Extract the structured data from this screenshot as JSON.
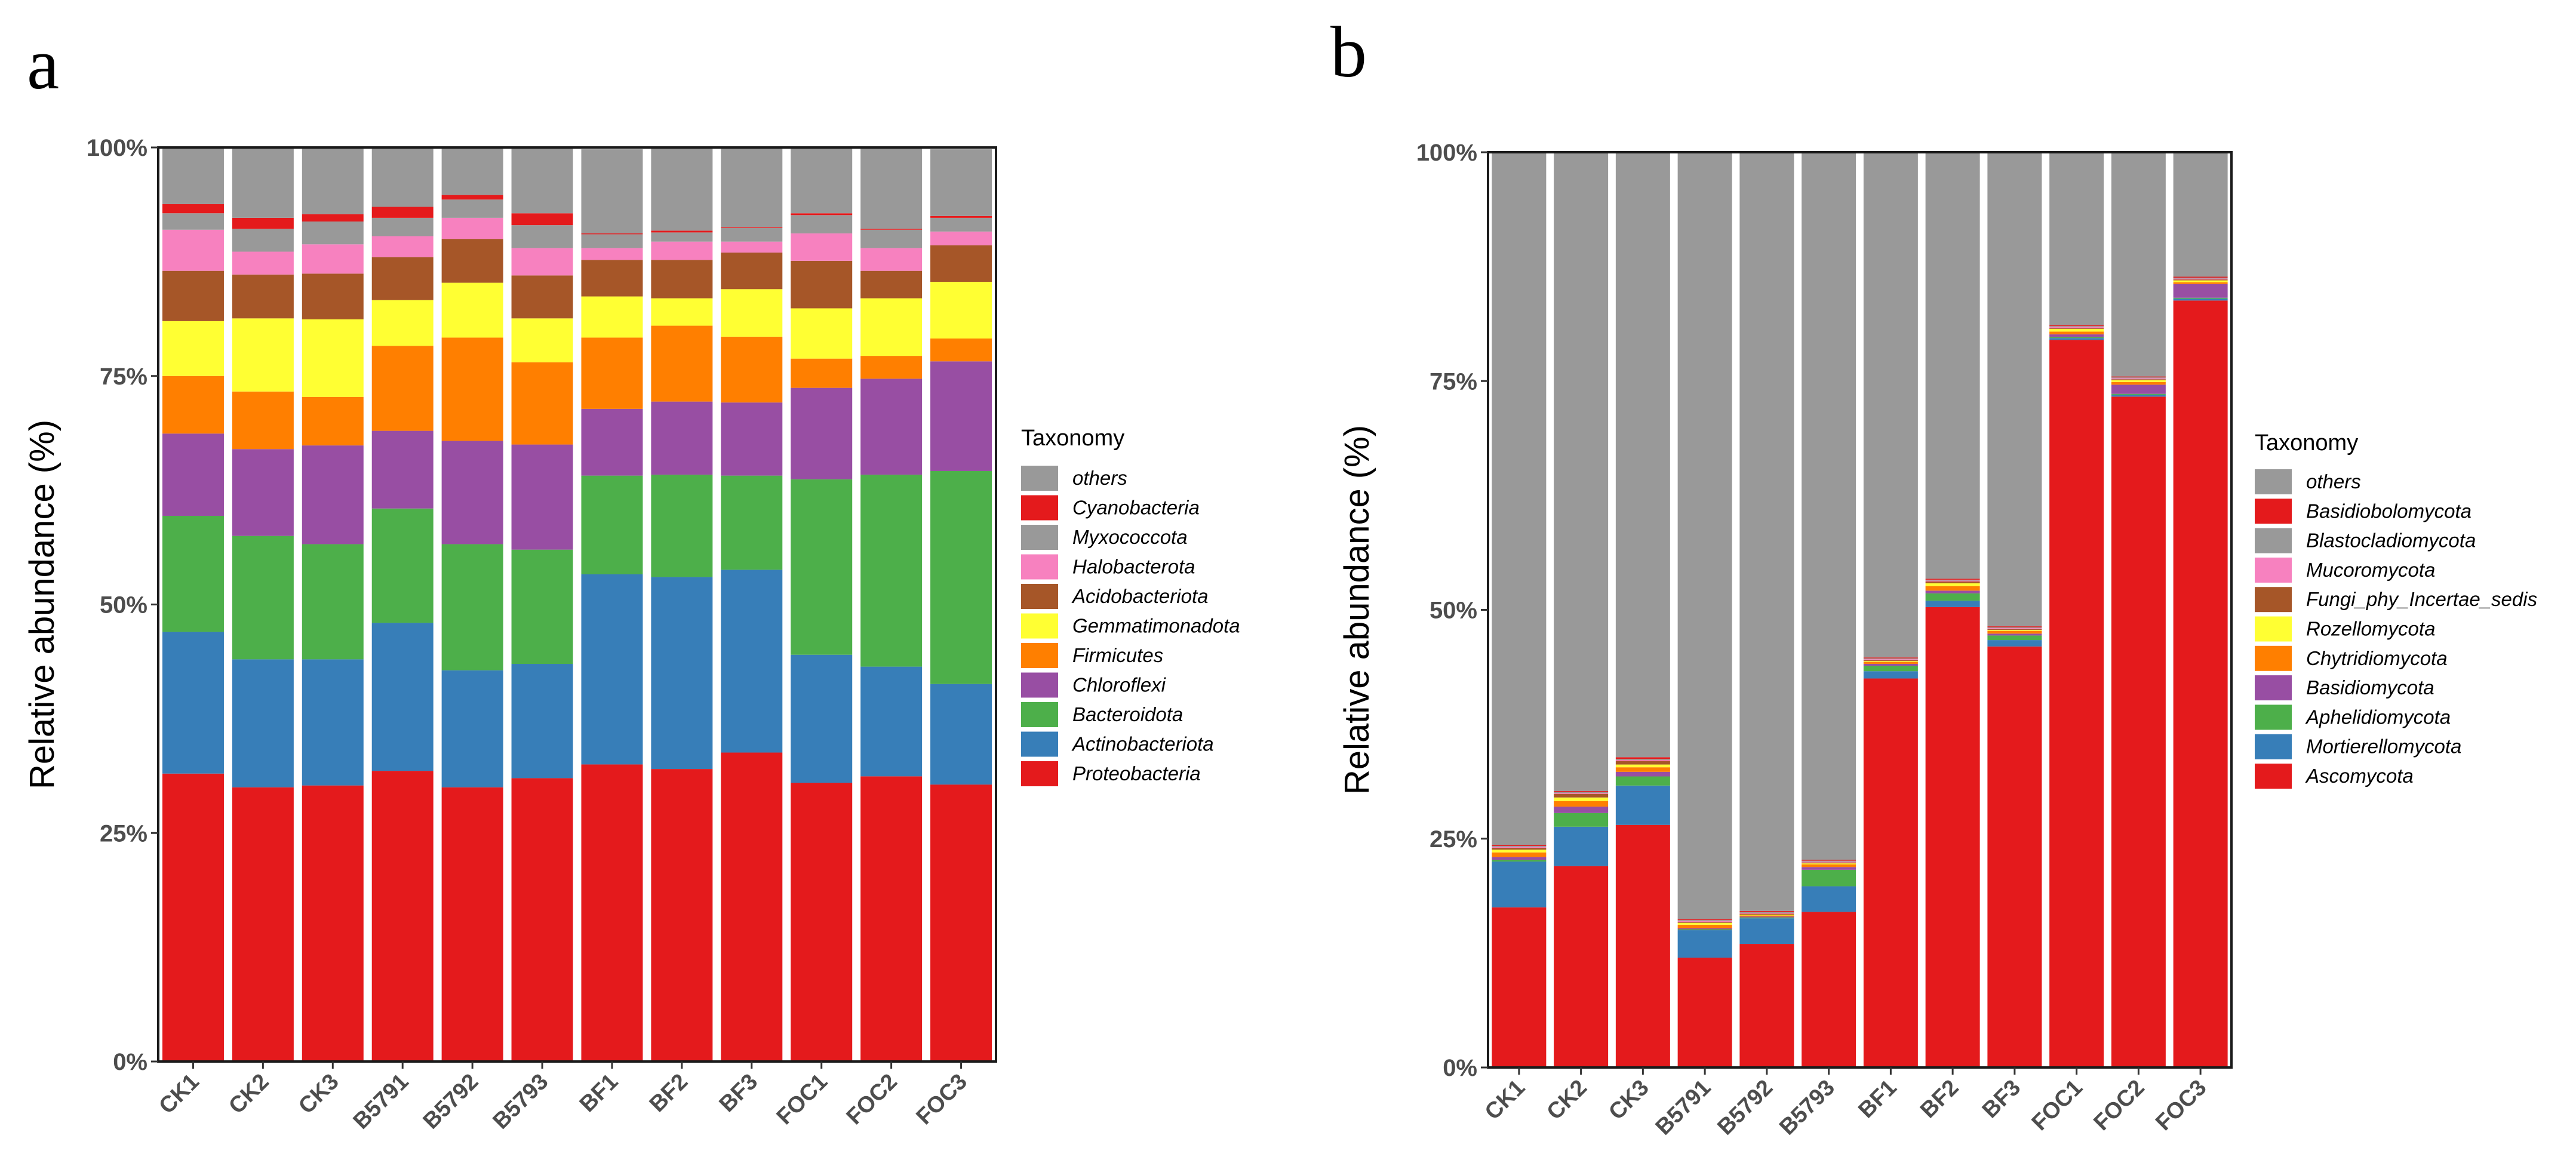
{
  "chart_data": [
    {
      "panel": "a",
      "type": "bar",
      "stacked": true,
      "title": "",
      "xlabel": "",
      "ylabel": "Relative abundance (%)",
      "ylim": [
        0,
        100
      ],
      "yticks": [
        "0%",
        "25%",
        "50%",
        "75%",
        "100%"
      ],
      "categories": [
        "CK1",
        "CK2",
        "CK3",
        "B5791",
        "B5792",
        "B5793",
        "BF1",
        "BF2",
        "BF3",
        "FOC1",
        "FOC2",
        "FOC3"
      ],
      "legend_title": "Taxonomy",
      "legend_position": "right",
      "series": [
        {
          "name": "Proteobacteria",
          "color": "#E41A1C",
          "values": [
            31.5,
            30.0,
            30.2,
            31.8,
            30.0,
            31.0,
            32.5,
            32.0,
            33.8,
            30.5,
            31.2,
            30.3
          ]
        },
        {
          "name": "Actinobacteriota",
          "color": "#377EB8",
          "values": [
            15.5,
            14.0,
            13.8,
            16.2,
            12.8,
            12.5,
            20.8,
            21.0,
            20.0,
            14.0,
            12.0,
            11.0
          ]
        },
        {
          "name": "Bacteroidota",
          "color": "#4DAF4A",
          "values": [
            12.7,
            13.5,
            12.6,
            12.5,
            13.8,
            12.5,
            10.8,
            11.2,
            10.3,
            19.2,
            21.0,
            23.3
          ]
        },
        {
          "name": "Chloroflexi",
          "color": "#984EA3",
          "values": [
            9.0,
            9.5,
            10.8,
            8.5,
            11.3,
            11.5,
            7.3,
            8.0,
            8.0,
            10.0,
            10.5,
            12.0
          ]
        },
        {
          "name": "Firmicutes",
          "color": "#FF7F00",
          "values": [
            6.3,
            6.3,
            5.3,
            9.3,
            11.3,
            9.0,
            7.8,
            8.3,
            7.2,
            3.2,
            2.5,
            2.5
          ]
        },
        {
          "name": "Gemmatimonadota",
          "color": "#FFFF33",
          "values": [
            6.0,
            8.0,
            8.5,
            5.0,
            6.0,
            4.8,
            4.5,
            3.0,
            5.2,
            5.5,
            6.3,
            6.2
          ]
        },
        {
          "name": "Acidobacteriota",
          "color": "#A65628",
          "values": [
            5.5,
            4.8,
            5.0,
            4.7,
            4.8,
            4.7,
            4.0,
            4.2,
            4.0,
            5.2,
            3.0,
            4.0
          ]
        },
        {
          "name": "Halobacterota",
          "color": "#F781BF",
          "values": [
            4.5,
            2.5,
            3.2,
            2.3,
            2.3,
            3.0,
            1.3,
            2.0,
            1.2,
            3.0,
            2.5,
            1.5
          ]
        },
        {
          "name": "Myxococcota",
          "color": "#999999",
          "values": [
            1.8,
            2.5,
            2.5,
            2.0,
            2.0,
            2.5,
            1.5,
            1.0,
            1.5,
            2.0,
            2.0,
            1.5
          ]
        },
        {
          "name": "Cyanobacteria",
          "color": "#E41A1C",
          "values": [
            1.0,
            1.2,
            0.8,
            1.2,
            0.5,
            1.3,
            0.1,
            0.2,
            0.1,
            0.2,
            0.1,
            0.2
          ]
        },
        {
          "name": "others",
          "color": "#999999",
          "values": [
            6.2,
            7.7,
            7.3,
            6.5,
            5.2,
            7.2,
            9.2,
            9.1,
            8.7,
            7.2,
            8.9,
            7.3
          ]
        }
      ]
    },
    {
      "panel": "b",
      "type": "bar",
      "stacked": true,
      "title": "",
      "xlabel": "",
      "ylabel": "Relative abundance (%)",
      "ylim": [
        0,
        100
      ],
      "yticks": [
        "0%",
        "25%",
        "50%",
        "75%",
        "100%"
      ],
      "categories": [
        "CK1",
        "CK2",
        "CK3",
        "B5791",
        "B5792",
        "B5793",
        "BF1",
        "BF2",
        "BF3",
        "FOC1",
        "FOC2",
        "FOC3"
      ],
      "legend_title": "Taxonomy",
      "legend_position": "right",
      "series": [
        {
          "name": "Ascomycota",
          "color": "#E41A1C",
          "values": [
            17.5,
            22.0,
            26.5,
            12.0,
            13.5,
            17.0,
            42.5,
            50.3,
            46.0,
            79.5,
            73.3,
            83.8
          ]
        },
        {
          "name": "Mortierellomycota",
          "color": "#377EB8",
          "values": [
            5.0,
            4.3,
            4.3,
            3.0,
            2.8,
            2.8,
            0.8,
            0.7,
            0.7,
            0.2,
            0.2,
            0.2
          ]
        },
        {
          "name": "Aphelidiomycota",
          "color": "#4DAF4A",
          "values": [
            0.2,
            1.5,
            1.0,
            0.1,
            0.1,
            1.8,
            0.6,
            0.8,
            0.5,
            0.1,
            0.1,
            0.1
          ]
        },
        {
          "name": "Basidiomycota",
          "color": "#984EA3",
          "values": [
            0.3,
            0.7,
            0.5,
            0.1,
            0.1,
            0.3,
            0.2,
            0.3,
            0.2,
            0.3,
            1.0,
            1.5
          ]
        },
        {
          "name": "Chytridiomycota",
          "color": "#FF7F00",
          "values": [
            0.5,
            0.6,
            0.5,
            0.4,
            0.1,
            0.3,
            0.2,
            0.5,
            0.3,
            0.3,
            0.3,
            0.2
          ]
        },
        {
          "name": "Rozellomycota",
          "color": "#FFFF33",
          "values": [
            0.3,
            0.4,
            0.3,
            0.2,
            0.1,
            0.1,
            0.1,
            0.3,
            0.1,
            0.3,
            0.2,
            0.2
          ]
        },
        {
          "name": "Fungi_phy_Incertae_sedis",
          "color": "#A65628",
          "values": [
            0.2,
            0.4,
            0.4,
            0.1,
            0.1,
            0.1,
            0.1,
            0.2,
            0.1,
            0.1,
            0.1,
            0.1
          ]
        },
        {
          "name": "Mucoromycota",
          "color": "#F781BF",
          "values": [
            0.1,
            0.1,
            0.1,
            0.1,
            0.1,
            0.1,
            0.1,
            0.1,
            0.1,
            0.1,
            0.1,
            0.1
          ]
        },
        {
          "name": "Blastocladiomycota",
          "color": "#999999",
          "values": [
            0.1,
            0.1,
            0.1,
            0.1,
            0.1,
            0.1,
            0.1,
            0.1,
            0.1,
            0.1,
            0.1,
            0.1
          ]
        },
        {
          "name": "Basidiobolomycota",
          "color": "#E41A1C",
          "values": [
            0.1,
            0.1,
            0.2,
            0.1,
            0.1,
            0.1,
            0.1,
            0.1,
            0.1,
            0.1,
            0.1,
            0.1
          ]
        },
        {
          "name": "others",
          "color": "#999999",
          "values": [
            75.7,
            69.8,
            66.1,
            83.8,
            82.9,
            77.3,
            55.2,
            46.6,
            51.8,
            18.9,
            24.5,
            13.6
          ]
        }
      ]
    }
  ]
}
